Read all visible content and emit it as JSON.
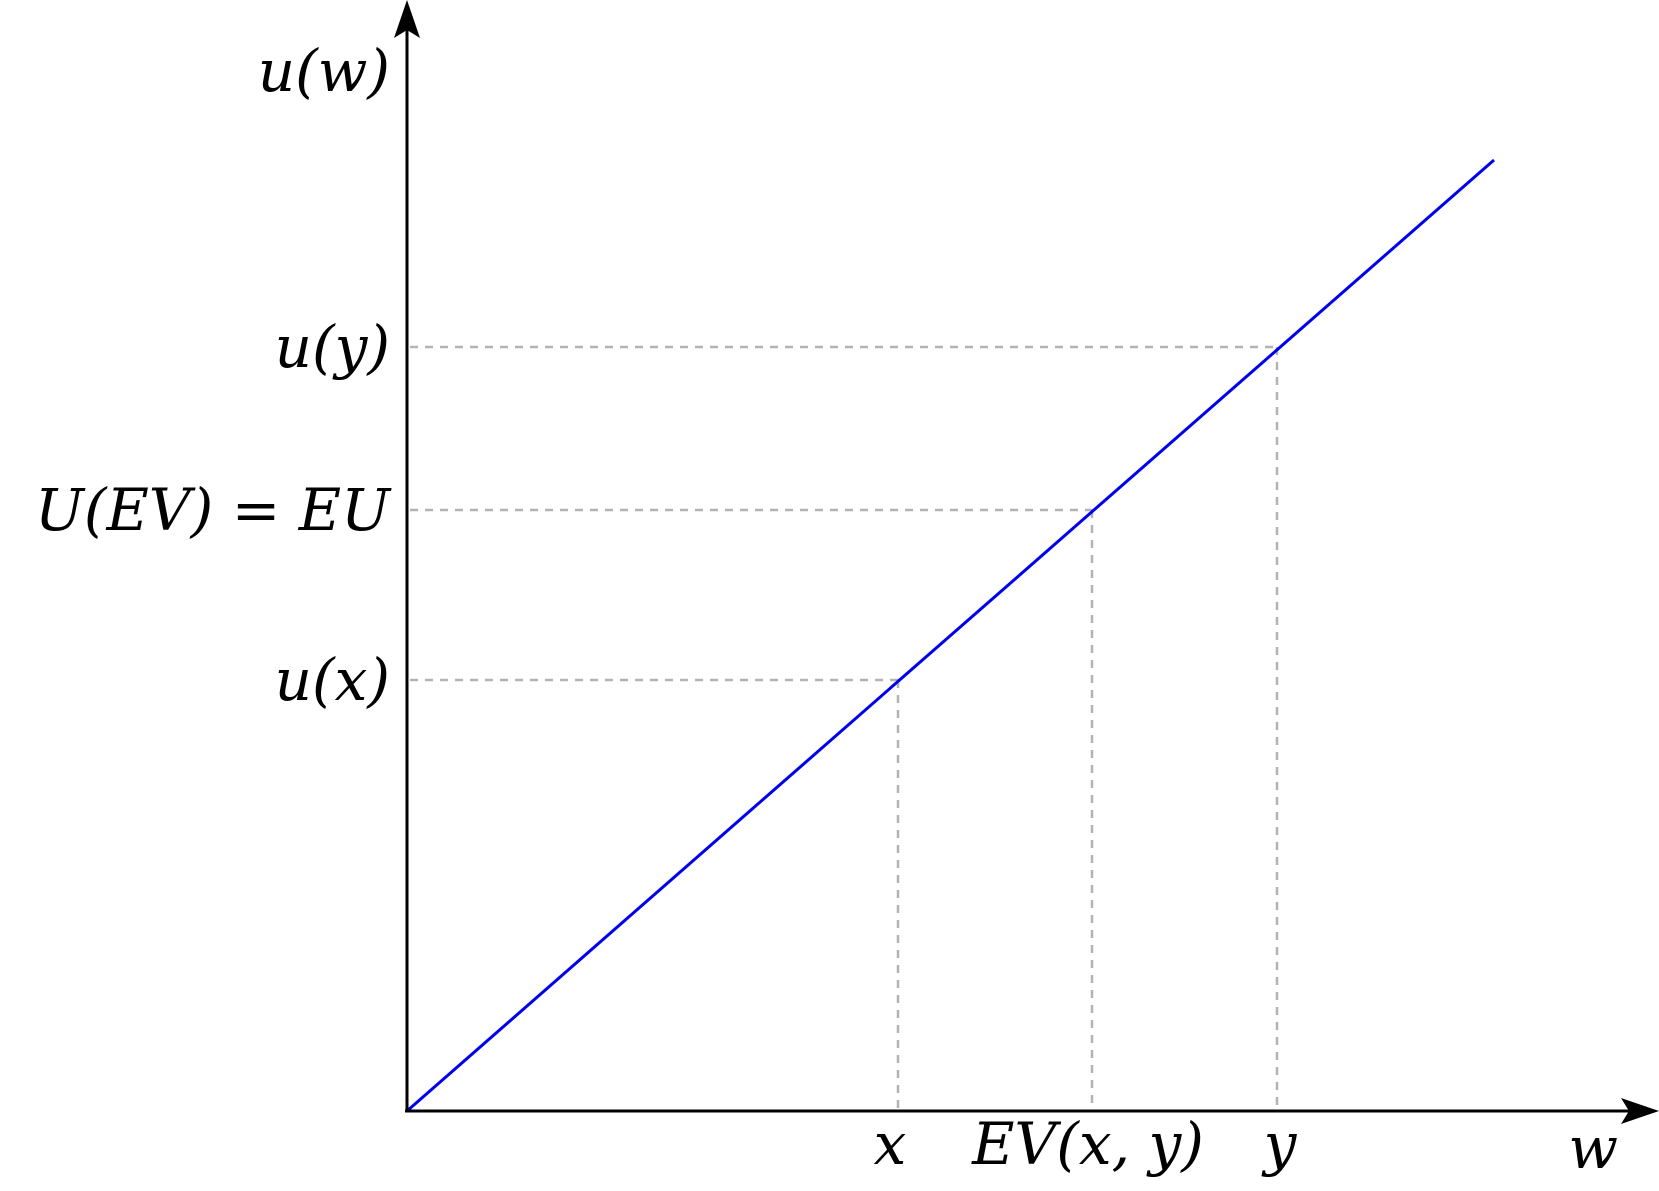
{
  "axes": {
    "y_label": "u(w)",
    "x_label": "w"
  },
  "y_ticks": {
    "uy": "u(y)",
    "uev": "U(EV) = EU",
    "ux": "u(x)"
  },
  "x_ticks": {
    "x": "x",
    "ev": "EV(x, y)",
    "y": "y"
  },
  "colors": {
    "utility_line": "#0000ee",
    "guides": "#b3b3b3",
    "axes": "#000000"
  }
}
